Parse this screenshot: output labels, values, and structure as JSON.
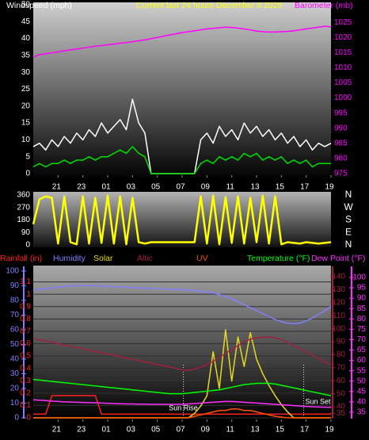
{
  "chart_data": [
    {
      "type": "line",
      "title": "Current last 24 hours December 8 2025",
      "ylabel": "Windspeed (mph)",
      "x": [
        0,
        0.5,
        1,
        1.5,
        2,
        2.5,
        3,
        3.5,
        4,
        4.5,
        5,
        5.5,
        6,
        6.5,
        7,
        7.5,
        8,
        8.5,
        9,
        9.5,
        10,
        10.5,
        11,
        11.5,
        12,
        12.5,
        13,
        13.5,
        14,
        14.5,
        15,
        15.5,
        16,
        16.5,
        17,
        17.5,
        18,
        18.5,
        19,
        19.5,
        20,
        20.5,
        21,
        21.5,
        22,
        22.5,
        23,
        23.5,
        24
      ],
      "xlim": [
        0,
        24
      ],
      "xticks": [
        {
          "value": 2,
          "label": "21"
        },
        {
          "value": 4,
          "label": "23"
        },
        {
          "value": 6,
          "label": "01"
        },
        {
          "value": 8,
          "label": "03"
        },
        {
          "value": 10,
          "label": "05"
        },
        {
          "value": 12,
          "label": "07"
        },
        {
          "value": 14,
          "label": "09"
        },
        {
          "value": 16,
          "label": "11"
        },
        {
          "value": 18,
          "label": "13"
        },
        {
          "value": 20,
          "label": "15"
        },
        {
          "value": 22,
          "label": "17"
        },
        {
          "value": 24,
          "label": "19"
        }
      ],
      "ylim": [
        0,
        50
      ],
      "yticks": [
        0,
        5,
        10,
        15,
        20,
        25,
        30,
        35,
        40,
        45,
        50
      ],
      "y2lim": [
        975,
        1030.8
      ],
      "y2ticks": [
        975,
        980,
        985,
        990,
        995,
        1000,
        1005,
        1010,
        1015,
        1020,
        1025
      ],
      "series": [
        {
          "color": "#ffffff",
          "values": [
            8,
            9,
            7,
            10,
            8,
            11,
            9,
            12,
            10,
            13,
            11,
            15,
            12,
            14,
            16,
            13,
            22,
            15,
            12,
            0,
            0,
            0,
            0,
            0,
            0,
            0,
            0,
            10,
            12,
            9,
            14,
            11,
            13,
            10,
            15,
            12,
            14,
            11,
            13,
            10,
            12,
            9,
            11,
            8,
            10,
            7,
            9,
            8,
            9
          ]
        },
        {
          "color": "#00dd00",
          "values": [
            2,
            3,
            2,
            3,
            3,
            4,
            3,
            4,
            4,
            5,
            4,
            5,
            5,
            6,
            7,
            6,
            8,
            6,
            5,
            0,
            0,
            0,
            0,
            0,
            0,
            0,
            0,
            3,
            4,
            3,
            5,
            4,
            5,
            4,
            6,
            5,
            6,
            4,
            5,
            4,
            5,
            3,
            4,
            3,
            4,
            2,
            3,
            3,
            3
          ]
        },
        {
          "name": "Barometer (mb)",
          "color": "#ff00ff",
          "axis": "y2",
          "values": [
            1013.5,
            1014.3,
            1014.6,
            1014.9,
            1015.2,
            1015.6,
            1015.9,
            1016.2,
            1016.5,
            1016.8,
            1017.1,
            1017.3,
            1017.6,
            1017.8,
            1018.1,
            1018.3,
            1018.6,
            1018.9,
            1019.2,
            1019.6,
            1020,
            1020.4,
            1020.8,
            1021.2,
            1021.6,
            1021.9,
            1022.2,
            1022.5,
            1022.8,
            1023,
            1023.2,
            1023.4,
            1023.3,
            1023.1,
            1022.8,
            1022.5,
            1022.1,
            1021.9,
            1021.8,
            1021.8,
            1021.9,
            1022,
            1022.2,
            1022.5,
            1022.8,
            1023.1,
            1023.4,
            1023.7,
            1023.5
          ]
        }
      ]
    },
    {
      "type": "line",
      "x": [
        0,
        0.5,
        1,
        1.5,
        2,
        2.5,
        3,
        3.5,
        4,
        4.5,
        5,
        5.5,
        6,
        6.5,
        7,
        7.5,
        8,
        8.5,
        9,
        9.5,
        10,
        10.5,
        11,
        11.5,
        12,
        12.5,
        13,
        13.5,
        14,
        14.5,
        15,
        15.5,
        16,
        16.5,
        17,
        17.5,
        18,
        18.5,
        19,
        19.5,
        20,
        20.5,
        21,
        21.5,
        22,
        22.5,
        23,
        23.5,
        24
      ],
      "xlim": [
        0,
        24
      ],
      "ylim": [
        0,
        360
      ],
      "yticks": [
        0,
        90,
        180,
        270,
        360
      ],
      "y2lim": [
        0,
        360
      ],
      "y2ticks": [
        {
          "value": 0,
          "label": "N"
        },
        {
          "value": 90,
          "label": "E"
        },
        {
          "value": 180,
          "label": "S"
        },
        {
          "value": 270,
          "label": "W"
        },
        {
          "value": 360,
          "label": "N"
        }
      ],
      "series": [
        {
          "color": "#ffff00",
          "values": [
            150,
            330,
            350,
            340,
            10,
            350,
            20,
            5,
            350,
            10,
            340,
            15,
            355,
            10,
            350,
            5,
            340,
            20,
            10,
            20,
            20,
            20,
            20,
            20,
            20,
            20,
            20,
            350,
            10,
            355,
            5,
            345,
            15,
            350,
            10,
            340,
            20,
            355,
            10,
            350,
            5,
            20,
            15,
            10,
            20,
            15,
            10,
            15,
            20
          ]
        }
      ]
    },
    {
      "type": "line",
      "x": [
        0,
        0.5,
        1,
        1.5,
        2,
        2.5,
        3,
        3.5,
        4,
        4.5,
        5,
        5.5,
        6,
        6.5,
        7,
        7.5,
        8,
        8.5,
        9,
        9.5,
        10,
        10.5,
        11,
        11.5,
        12,
        12.5,
        13,
        13.5,
        14,
        14.5,
        15,
        15.5,
        16,
        16.5,
        17,
        17.5,
        18,
        18.5,
        19,
        19.5,
        20,
        20.5,
        21,
        21.5,
        22,
        22.5,
        23,
        23.5,
        24
      ],
      "xlim": [
        0,
        24
      ],
      "xticks": [
        {
          "value": 2,
          "label": "21"
        },
        {
          "value": 4,
          "label": "23"
        },
        {
          "value": 6,
          "label": "01"
        },
        {
          "value": 8,
          "label": "03"
        },
        {
          "value": 10,
          "label": "05"
        },
        {
          "value": 12,
          "label": "07"
        },
        {
          "value": 14,
          "label": "09"
        },
        {
          "value": 16,
          "label": "11"
        },
        {
          "value": 18,
          "label": "13"
        },
        {
          "value": 20,
          "label": "15"
        },
        {
          "value": 22,
          "label": "17"
        },
        {
          "value": 24,
          "label": "19"
        }
      ],
      "ylim": [
        0,
        1.2
      ],
      "yticks": [
        0,
        0.1,
        0.2,
        0.3,
        0.4,
        0.5,
        0.6,
        0.7,
        0.8,
        0.9,
        1,
        1.1
      ],
      "y_humidity_lim": [
        0,
        101
      ],
      "y_humidity_ticks": [
        0,
        10,
        20,
        30,
        40,
        50,
        60,
        70,
        80,
        90,
        100
      ],
      "y2lim": [
        31.5,
        145.5
      ],
      "y2ticks": [
        35,
        40,
        50,
        60,
        70,
        80,
        90,
        100,
        110,
        120,
        130,
        140
      ],
      "y_dew_lim": [
        32.3,
        103.8
      ],
      "y_dew_ticks": [
        35,
        40,
        45,
        50,
        55,
        60,
        65,
        70,
        75,
        80,
        85,
        90,
        95,
        100
      ],
      "grid": true,
      "annotations": [
        {
          "text": "Sun Rise",
          "x": 12.1
        },
        {
          "text": "Sun Set",
          "x": 21.8
        }
      ],
      "series": [
        {
          "name": "Rainfall (in)",
          "color": "#ff2020",
          "axis": "y",
          "values": [
            0.03,
            0.03,
            0.03,
            0.18,
            0.18,
            0.18,
            0.18,
            0.18,
            0.18,
            0.18,
            0.18,
            0.03,
            0.03,
            0.03,
            0.03,
            0.03,
            0.03,
            0.03,
            0.03,
            0.03,
            0.03,
            0.03,
            0.03,
            0.03,
            0.03,
            0.03,
            0.03,
            0.03,
            0.03,
            0.03,
            0.03,
            0.03,
            0.03,
            0.03,
            0.03,
            0.03,
            0.03,
            0.03,
            0.03,
            0.03,
            0.03,
            0.03,
            0.03,
            0.03,
            0.03,
            0.03,
            0.03,
            0.03,
            0.03
          ]
        },
        {
          "name": "Humidity",
          "color": "#8080ff",
          "axis": "humidity",
          "values": [
            87,
            87.5,
            88,
            88.5,
            89,
            89.5,
            90,
            90,
            90,
            90,
            90,
            89.8,
            89.6,
            89.4,
            89.2,
            89,
            88.8,
            88.6,
            88.4,
            88.2,
            88,
            87.8,
            87.6,
            87.4,
            87.2,
            87,
            86.6,
            86.2,
            85.8,
            85.2,
            84,
            82.5,
            81,
            79,
            77,
            75,
            73,
            71,
            69,
            67,
            65.5,
            64.5,
            64,
            64.5,
            66,
            68,
            70.5,
            73,
            76
          ]
        },
        {
          "name": "Solar",
          "color": "#e8d820",
          "axis": "humidity",
          "values": [
            0,
            0,
            0,
            0,
            0,
            0,
            0,
            0,
            0,
            0,
            0,
            0,
            0,
            0,
            0,
            0,
            0,
            0,
            0,
            0,
            0,
            0,
            0,
            0,
            0,
            0,
            3,
            8,
            15,
            45,
            20,
            60,
            25,
            55,
            35,
            58,
            40,
            30,
            22,
            15,
            9,
            4,
            0,
            0,
            0,
            0,
            0,
            0,
            0
          ]
        },
        {
          "name": "Altic",
          "color": "#a02040",
          "axis": "y2",
          "values": [
            92.5,
            91.5,
            90.5,
            89.5,
            88.5,
            87.5,
            86.5,
            85.5,
            84.5,
            83.5,
            82.5,
            81.5,
            80.5,
            79.5,
            78.5,
            77.5,
            76.5,
            75.5,
            74.5,
            73.5,
            72.5,
            71.5,
            70.5,
            69.5,
            68.5,
            68,
            69,
            70.5,
            72.5,
            75,
            78,
            81,
            84,
            87,
            90,
            92,
            93,
            93.5,
            93.5,
            93,
            91.5,
            89.5,
            87,
            84.5,
            82,
            79.5,
            77,
            74.5,
            72.5
          ]
        },
        {
          "name": "UV",
          "color": "#ff5000",
          "axis": "humidity",
          "values": [
            0,
            0,
            0,
            0,
            0,
            0,
            0,
            0,
            0,
            0,
            0,
            0,
            0,
            0,
            0,
            0,
            0,
            0,
            0,
            0,
            0,
            0,
            0,
            0,
            0,
            0,
            1,
            2,
            3,
            4,
            5,
            5,
            6,
            6,
            5,
            5,
            4,
            3,
            2,
            1,
            0.5,
            0,
            0,
            0,
            0,
            0,
            0,
            0,
            0
          ]
        },
        {
          "name": "Temperature (°F)",
          "color": "#00ff00",
          "axis": "y2",
          "values": [
            61,
            60.5,
            60,
            59.5,
            59,
            58.5,
            58,
            57.5,
            57,
            56.5,
            56,
            55.5,
            55,
            54.5,
            54,
            53.5,
            53,
            52.5,
            52,
            51.5,
            51,
            50.5,
            50,
            50,
            50,
            50.5,
            51,
            51.5,
            52,
            52.5,
            53,
            54,
            55,
            56,
            57,
            57.5,
            58,
            58,
            58,
            57.5,
            56.5,
            55.5,
            54.5,
            53.5,
            52.5,
            51.5,
            50.5,
            49.5,
            48.5
          ]
        },
        {
          "name": "Dew Point (°F)",
          "color": "#ff30ff",
          "axis": "dew",
          "values": [
            41,
            40.8,
            40.6,
            40.4,
            40.2,
            40,
            39.9,
            39.8,
            39.7,
            39.6,
            39.5,
            39.4,
            39.3,
            39.2,
            39.1,
            39,
            39,
            38.9,
            38.9,
            38.8,
            38.8,
            38.8,
            38.8,
            38.8,
            38.8,
            39,
            39.2,
            39.4,
            39.6,
            39.8,
            40,
            40.2,
            40.2,
            40,
            39.8,
            39.6,
            39.4,
            39.2,
            39,
            38.8,
            38.6,
            38.4,
            38.2,
            38,
            37.8,
            37.6,
            37.5,
            37.4,
            37.3
          ]
        }
      ]
    }
  ]
}
